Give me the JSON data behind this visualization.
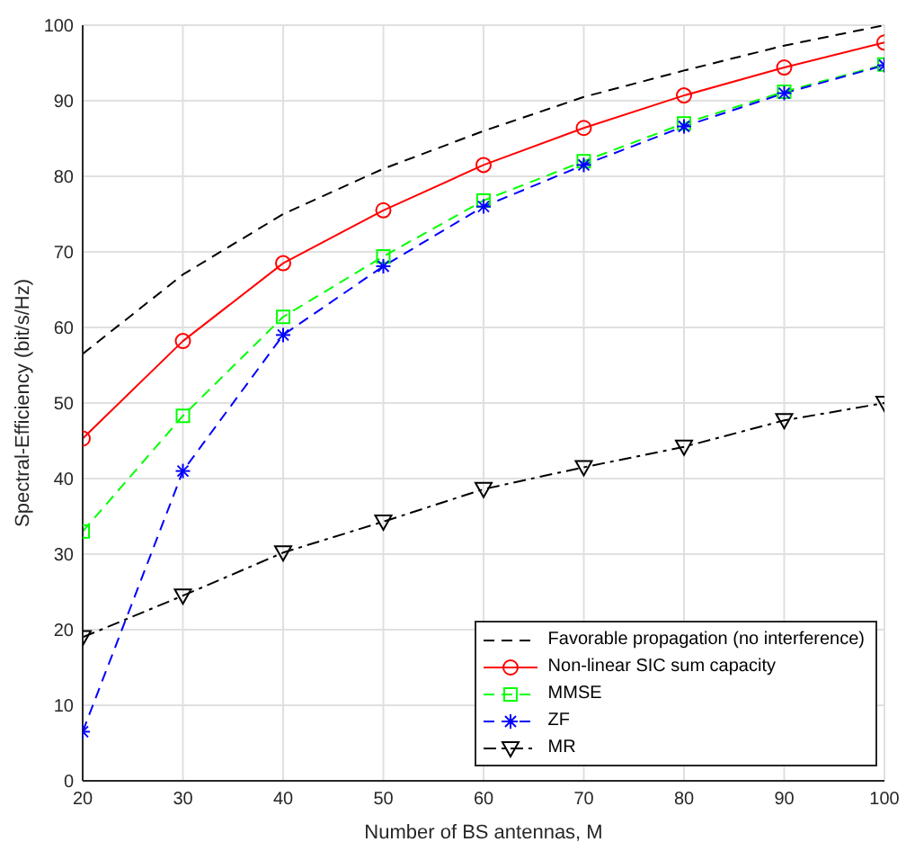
{
  "chart_data": {
    "type": "line",
    "xlabel": "Number of BS antennas, M",
    "ylabel": "Spectral-Efficiency (bit/s/Hz)",
    "x": [
      20,
      30,
      40,
      50,
      60,
      70,
      80,
      90,
      100
    ],
    "xlim": [
      20,
      100
    ],
    "xticks": [
      20,
      30,
      40,
      50,
      60,
      70,
      80,
      90,
      100
    ],
    "ylim": [
      0,
      100
    ],
    "yticks": [
      0,
      10,
      20,
      30,
      40,
      50,
      60,
      70,
      80,
      90,
      100
    ],
    "grid": true,
    "legend": "bottom right",
    "series": [
      {
        "name": "Favorable propagation (no interference)",
        "color": "#000000",
        "marker": "none",
        "line_style": "dashed",
        "values": [
          56.5,
          67,
          75,
          81,
          86,
          90.5,
          94,
          97.3,
          100
        ]
      },
      {
        "name": "Non-linear SIC sum capacity",
        "color": "#ff0000",
        "marker": "circle",
        "line_style": "solid",
        "values": [
          45.3,
          58.2,
          68.5,
          75.5,
          81.5,
          86.4,
          90.7,
          94.4,
          97.7
        ]
      },
      {
        "name": "MMSE",
        "color": "#00ff00",
        "marker": "square",
        "line_style": "dashed",
        "values": [
          33,
          48.3,
          61.4,
          69.4,
          76.8,
          82,
          87,
          91.2,
          94.8
        ]
      },
      {
        "name": "ZF",
        "color": "#0000ff",
        "marker": "cross",
        "line_style": "dashed",
        "values": [
          6.5,
          41,
          59,
          68.1,
          76,
          81.5,
          86.6,
          91,
          94.7
        ]
      },
      {
        "name": "MR",
        "color": "#000000",
        "marker": "triangle",
        "line_style": "dashdot",
        "values": [
          19,
          24.5,
          30.2,
          34.3,
          38.6,
          41.5,
          44.2,
          47.7,
          50
        ]
      }
    ]
  }
}
